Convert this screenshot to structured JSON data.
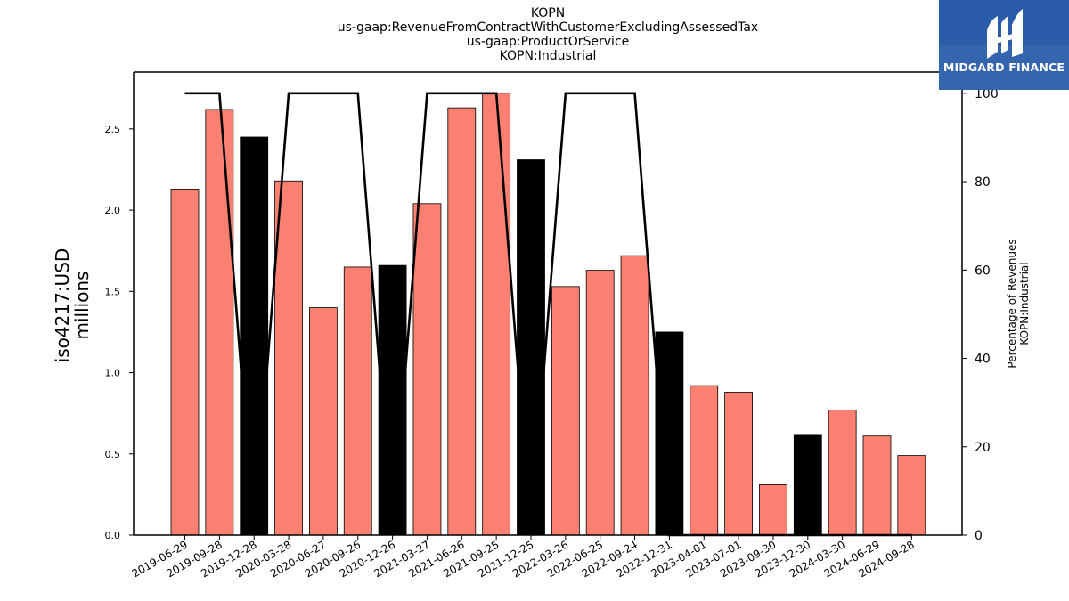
{
  "title_lines": [
    "KOPN",
    "us-gaap:RevenueFromContractWithCustomerExcludingAssessedTax",
    "us-gaap:ProductOrService",
    "KOPN:Industrial"
  ],
  "logo": {
    "text": "MIDGARD FINANCE",
    "background": "#2a5caa",
    "icon": "midgard-logo-icon"
  },
  "colors": {
    "highlight_bar": "#000000",
    "bar": "#fa8072",
    "line": "#000000"
  },
  "chart_data": {
    "type": "bar",
    "categories": [
      "2019-06-29",
      "2019-09-28",
      "2019-12-28",
      "2020-03-28",
      "2020-06-27",
      "2020-09-26",
      "2020-12-26",
      "2021-03-27",
      "2021-06-26",
      "2021-09-25",
      "2021-12-25",
      "2022-03-26",
      "2022-06-25",
      "2022-09-24",
      "2022-12-31",
      "2023-04-01",
      "2023-07-01",
      "2023-09-30",
      "2023-12-30",
      "2024-03-30",
      "2024-06-29",
      "2024-09-28"
    ],
    "values": [
      2.13,
      2.62,
      2.45,
      2.18,
      1.4,
      1.65,
      1.66,
      2.04,
      2.63,
      2.72,
      2.31,
      1.53,
      1.63,
      1.72,
      1.25,
      0.92,
      0.88,
      0.31,
      0.62,
      0.77,
      0.61,
      0.49
    ],
    "highlight": [
      false,
      false,
      true,
      false,
      false,
      false,
      true,
      false,
      false,
      false,
      true,
      false,
      false,
      false,
      true,
      false,
      false,
      false,
      true,
      false,
      false,
      false
    ],
    "ylabel": "iso4217:USD\nmillions",
    "ylim": [
      0,
      2.85
    ],
    "yticks": [
      0.0,
      0.5,
      1.0,
      1.5,
      2.0,
      2.5
    ],
    "ytick_labels": [
      "0.0",
      "0.5",
      "1.0",
      "1.5",
      "2.0",
      "2.5"
    ],
    "secondary": {
      "type": "line",
      "ylabel": "Percentage of Revenues\nKOPN:Industrial",
      "ylim": [
        0,
        104.8
      ],
      "yticks": [
        0,
        20,
        40,
        60,
        80,
        100
      ],
      "ytick_labels": [
        "0",
        "20",
        "40",
        "60",
        "80",
        "100"
      ],
      "values": [
        100,
        100,
        0,
        100,
        100,
        100,
        0,
        100,
        100,
        100,
        0,
        100,
        100,
        100,
        0,
        0,
        0,
        0,
        0,
        0,
        0,
        0
      ]
    },
    "grid": false
  }
}
